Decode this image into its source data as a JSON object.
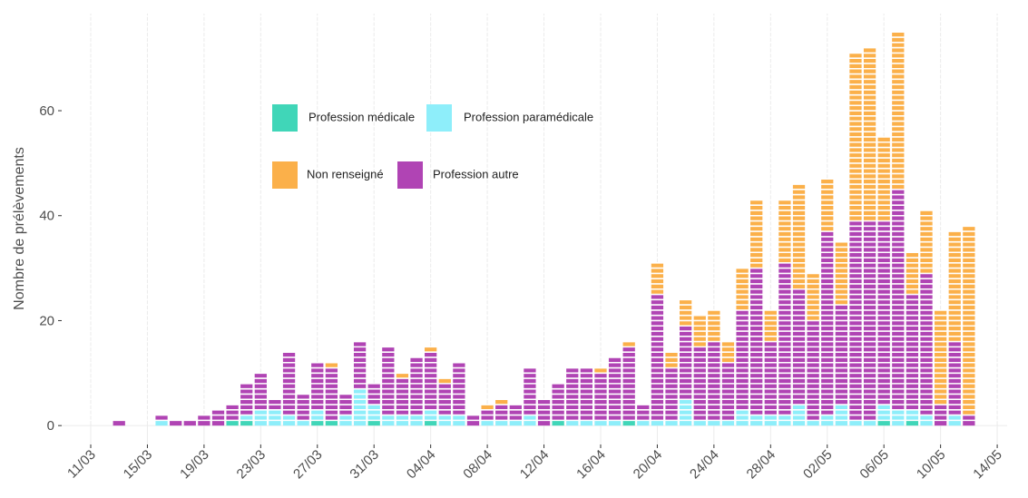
{
  "chart_data": {
    "type": "bar",
    "stacked": true,
    "y_label": "Nombre de prélèvements",
    "categories": [
      "13/03",
      "14/03",
      "15/03",
      "16/03",
      "17/03",
      "18/03",
      "19/03",
      "20/03",
      "21/03",
      "22/03",
      "23/03",
      "24/03",
      "25/03",
      "26/03",
      "27/03",
      "28/03",
      "29/03",
      "30/03",
      "31/03",
      "01/04",
      "02/04",
      "03/04",
      "04/04",
      "05/04",
      "06/04",
      "07/04",
      "08/04",
      "09/04",
      "10/04",
      "11/04",
      "12/04",
      "13/04",
      "14/04",
      "15/04",
      "16/04",
      "17/04",
      "18/04",
      "19/04",
      "20/04",
      "21/04",
      "22/04",
      "23/04",
      "24/04",
      "25/04",
      "26/04",
      "27/04",
      "28/04",
      "29/04",
      "30/04",
      "01/05",
      "02/05",
      "03/05",
      "04/05",
      "05/05",
      "06/05",
      "07/05",
      "08/05",
      "09/05",
      "10/05",
      "11/05",
      "12/05"
    ],
    "series": [
      {
        "name": "Profession médicale",
        "color": "#40d6b8",
        "values": [
          0,
          0,
          0,
          0,
          0,
          0,
          0,
          0,
          1,
          1,
          0,
          0,
          0,
          0,
          1,
          1,
          0,
          0,
          1,
          0,
          0,
          0,
          1,
          0,
          0,
          0,
          0,
          0,
          0,
          0,
          0,
          1,
          0,
          0,
          0,
          0,
          1,
          0,
          0,
          0,
          0,
          0,
          0,
          0,
          0,
          0,
          0,
          0,
          0,
          0,
          0,
          0,
          0,
          0,
          1,
          0,
          1,
          0,
          0,
          0,
          0
        ]
      },
      {
        "name": "Profession paramédicale",
        "color": "#8eeefa",
        "values": [
          0,
          0,
          0,
          1,
          0,
          0,
          0,
          0,
          0,
          1,
          3,
          3,
          2,
          1,
          2,
          0,
          2,
          7,
          3,
          2,
          2,
          2,
          2,
          2,
          2,
          0,
          1,
          1,
          1,
          2,
          0,
          0,
          1,
          1,
          1,
          1,
          0,
          1,
          1,
          1,
          5,
          1,
          1,
          1,
          3,
          2,
          2,
          2,
          4,
          1,
          2,
          4,
          1,
          1,
          3,
          3,
          2,
          2,
          0,
          2,
          0
        ]
      },
      {
        "name": "Profession autre",
        "color": "#b044b4",
        "values": [
          1,
          0,
          0,
          1,
          1,
          1,
          2,
          3,
          3,
          6,
          7,
          2,
          12,
          5,
          9,
          10,
          4,
          9,
          4,
          13,
          7,
          11,
          11,
          6,
          10,
          2,
          2,
          3,
          3,
          9,
          5,
          7,
          10,
          10,
          9,
          12,
          14,
          3,
          24,
          10,
          14,
          14,
          15,
          11,
          19,
          28,
          14,
          29,
          22,
          19,
          35,
          19,
          38,
          38,
          35,
          42,
          22,
          27,
          4,
          14,
          2
        ]
      },
      {
        "name": "Non renseigné",
        "color": "#fbb04a",
        "values": [
          0,
          0,
          0,
          0,
          0,
          0,
          0,
          0,
          0,
          0,
          0,
          0,
          0,
          0,
          0,
          1,
          0,
          0,
          0,
          0,
          1,
          0,
          1,
          1,
          0,
          0,
          1,
          1,
          0,
          0,
          0,
          0,
          0,
          0,
          1,
          0,
          1,
          0,
          6,
          3,
          5,
          6,
          6,
          4,
          8,
          13,
          6,
          12,
          20,
          9,
          10,
          12,
          32,
          33,
          16,
          30,
          8,
          12,
          18,
          21,
          36
        ]
      }
    ],
    "ylim": [
      -3.6,
      78.5
    ],
    "yticks": [
      0,
      20,
      40,
      60
    ],
    "xticks": [
      "11/03",
      "15/03",
      "19/03",
      "23/03",
      "27/03",
      "31/03",
      "04/04",
      "08/04",
      "12/04",
      "16/04",
      "20/04",
      "24/04",
      "28/04",
      "02/05",
      "06/05",
      "10/05",
      "14/05"
    ],
    "grid": true
  }
}
